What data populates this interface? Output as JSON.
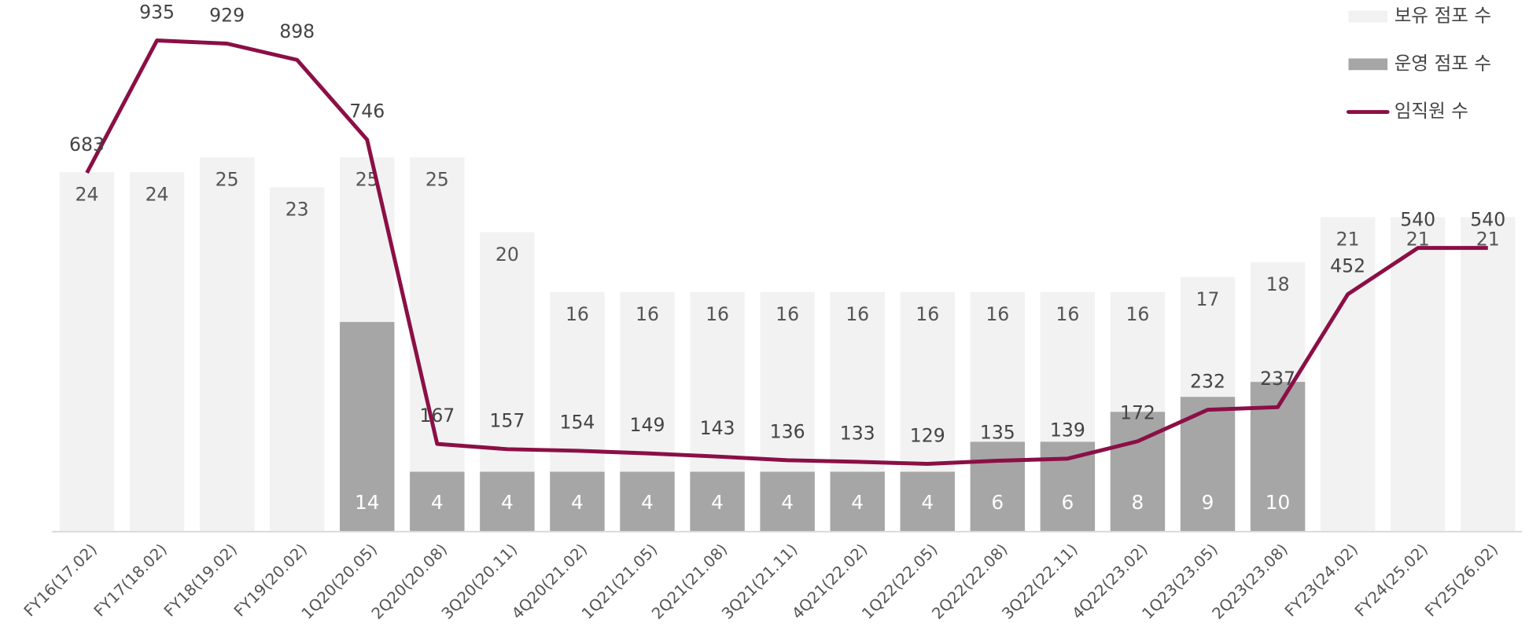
{
  "chart_data": {
    "type": "combo",
    "categories": [
      "FY16(17.02)",
      "FY17(18.02)",
      "FY18(19.02)",
      "FY19(20.02)",
      "1Q20(20.05)",
      "2Q20(20.08)",
      "3Q20(20.11)",
      "4Q20(21.02)",
      "1Q21(21.05)",
      "2Q21(21.08)",
      "3Q21(21.11)",
      "4Q21(22.02)",
      "1Q22(22.05)",
      "2Q22(22.08)",
      "3Q22(22.11)",
      "4Q22(23.02)",
      "1Q23(23.05)",
      "2Q23(23.08)",
      "FY23(24.02)",
      "FY24(25.02)",
      "FY25(26.02)"
    ],
    "series": [
      {
        "name": "보유 점포 수",
        "type": "bar",
        "color": "#f2f2f2",
        "values": [
          24,
          24,
          25,
          23,
          25,
          25,
          20,
          16,
          16,
          16,
          16,
          16,
          16,
          16,
          16,
          16,
          17,
          18,
          21,
          21,
          21
        ]
      },
      {
        "name": "운영 점포 수",
        "type": "bar",
        "color": "#a6a6a6",
        "values": [
          null,
          null,
          null,
          null,
          14,
          4,
          4,
          4,
          4,
          4,
          4,
          4,
          4,
          6,
          6,
          8,
          9,
          10,
          null,
          null,
          null
        ]
      },
      {
        "name": "임직원 수",
        "type": "line",
        "axis": "y2",
        "color": "#8b0f46",
        "values": [
          683,
          935,
          929,
          898,
          746,
          167,
          157,
          154,
          149,
          143,
          136,
          133,
          129,
          135,
          139,
          172,
          232,
          237,
          452,
          540,
          540
        ]
      }
    ],
    "ylim": [
      0,
      35.5
    ],
    "y2lim": [
      0,
      1012
    ],
    "legend": "upper right"
  }
}
